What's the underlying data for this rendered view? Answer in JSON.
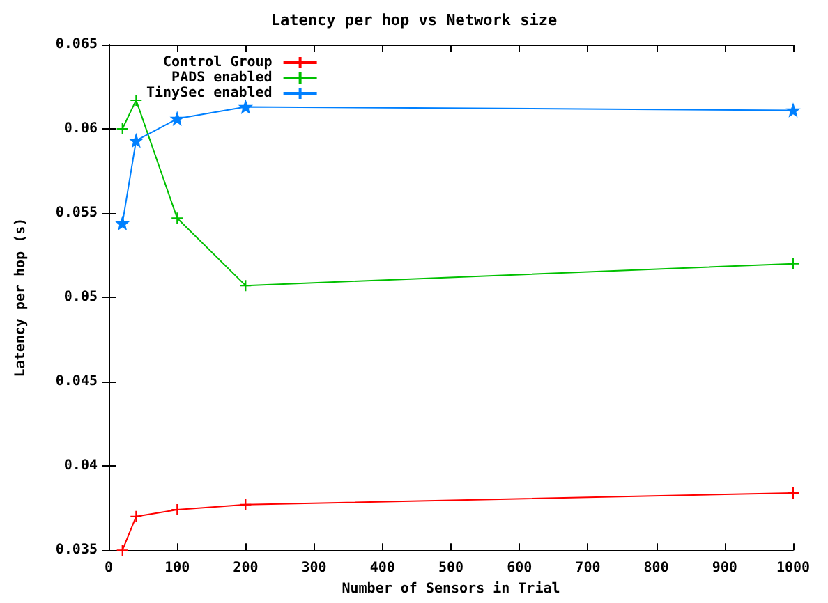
{
  "chart_data": {
    "type": "line",
    "title": "Latency per hop vs Network size",
    "xlabel": "Number of Sensors in Trial",
    "ylabel": "Latency per hop (s)",
    "x": [
      20,
      40,
      100,
      200,
      1000
    ],
    "series": [
      {
        "name": "Control Group",
        "color": "#ff0000",
        "marker": "cross",
        "values": [
          0.035,
          0.037,
          0.0374,
          0.0377,
          0.0384
        ]
      },
      {
        "name": "PADS enabled",
        "color": "#00c000",
        "marker": "cross",
        "values": [
          0.06,
          0.0617,
          0.0547,
          0.0507,
          0.052
        ]
      },
      {
        "name": "TinySec enabled",
        "color": "#0080ff",
        "marker": "star",
        "values": [
          0.0544,
          0.0593,
          0.0606,
          0.0613,
          0.0611
        ]
      }
    ],
    "xlim": [
      0,
      1000
    ],
    "xticks": [
      0,
      100,
      200,
      300,
      400,
      500,
      600,
      700,
      800,
      900,
      1000
    ],
    "ylim": [
      0.035,
      0.065
    ],
    "yticks": [
      0.035,
      0.04,
      0.045,
      0.05,
      0.055,
      0.06,
      0.065
    ],
    "grid": false,
    "legend": "top left",
    "line_style": "solid"
  }
}
